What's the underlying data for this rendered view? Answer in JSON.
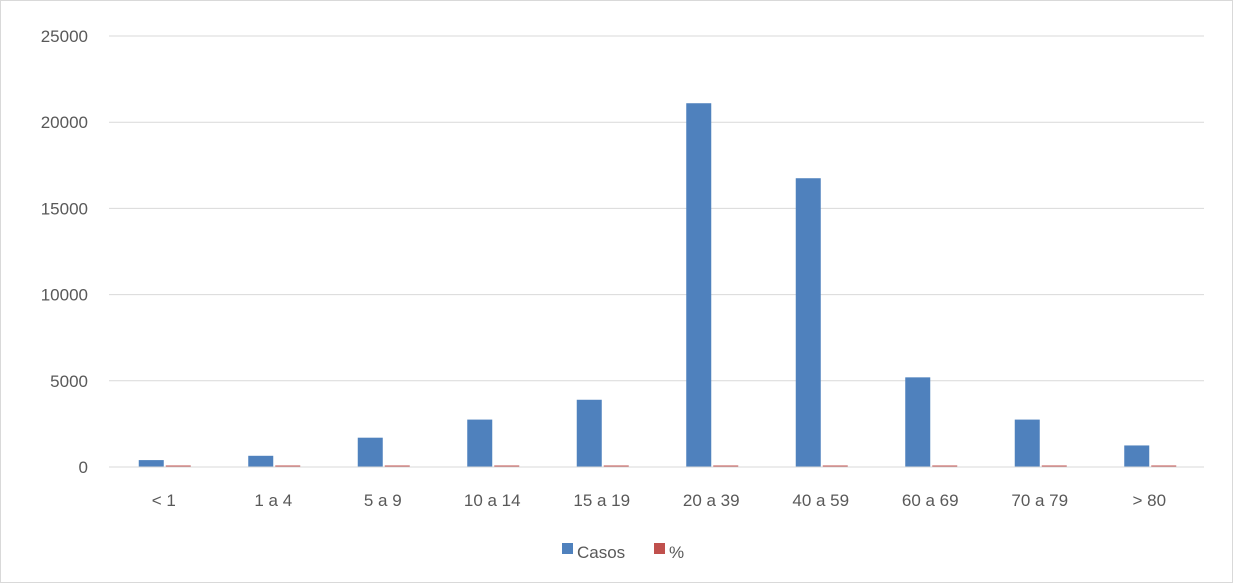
{
  "chart_data": {
    "type": "bar",
    "categories": [
      "< 1",
      "1 a 4",
      "5 a 9",
      "10 a 14",
      "15 a 19",
      "20 a 39",
      "40 a 59",
      "60 a 69",
      "70 a 79",
      "> 80"
    ],
    "series": [
      {
        "name": "Casos",
        "color": "#4f81bd",
        "values": [
          400,
          650,
          1700,
          2750,
          3900,
          21100,
          16750,
          5200,
          2750,
          1250
        ]
      },
      {
        "name": "%",
        "color": "#c0504d",
        "values": [
          1,
          1,
          3,
          5,
          7,
          36,
          28,
          9,
          5,
          2
        ]
      }
    ],
    "yticks": [
      0,
      5000,
      10000,
      15000,
      20000,
      25000
    ],
    "ylim": [
      0,
      25000
    ],
    "grid": true,
    "legend": "bottom-center"
  }
}
